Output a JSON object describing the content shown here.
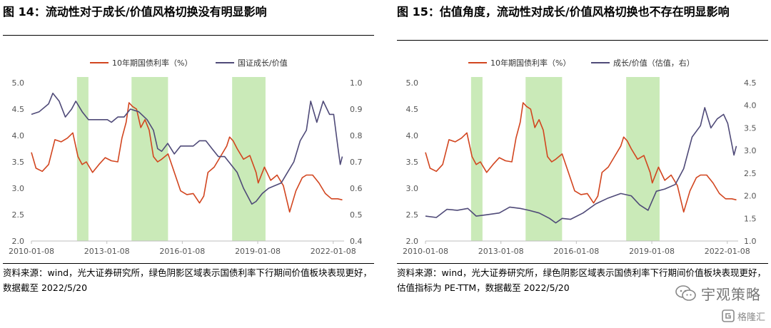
{
  "left": {
    "title": "图 14：流动性对于成长/价值风格切换没有明显影响",
    "source": "资料来源：wind，光大证券研究所，绿色阴影区域表示国债利率下行期间价值板块表现更好，数据截至 2022/5/20"
  },
  "right": {
    "title": "图 15：估值角度，流动性对成长/价值风格切换也不存在明显影响",
    "source": "资料来源：wind，光大证券研究所，绿色阴影区域表示国债利率下行期间价值板块表现更好，估值指标为 PE-TTM，数据截至 2022/5/20"
  },
  "watermark": {
    "text": "宇观策略",
    "small_text": "格隆汇"
  },
  "chart_data": [
    {
      "type": "line",
      "x_ticks": [
        "2010-01-08",
        "2013-01-08",
        "2016-01-08",
        "2019-01-08",
        "2022-01-08"
      ],
      "x_range": [
        "2010-01-08",
        "2022-06-15"
      ],
      "y_left": {
        "ticks": [
          "5.0",
          "4.5",
          "4.0",
          "3.5",
          "3.0",
          "2.5",
          "2.0"
        ],
        "range": [
          2.0,
          5.0
        ]
      },
      "y_right": {
        "ticks": [
          "1.0",
          "0.9",
          "0.8",
          "0.7",
          "0.6",
          "0.5",
          "0.4"
        ],
        "range": [
          0.4,
          1.0
        ]
      },
      "shaded_periods": [
        [
          "2011-11-01",
          "2012-04-15"
        ],
        [
          "2014-01-01",
          "2015-06-15"
        ],
        [
          "2018-01-01",
          "2019-05-01"
        ]
      ],
      "series": [
        {
          "name": "10年期国债利率（%）",
          "axis": "left",
          "color": "#d2451f",
          "points": [
            [
              "2010-01-08",
              3.68
            ],
            [
              "2010-03-15",
              3.38
            ],
            [
              "2010-06-15",
              3.32
            ],
            [
              "2010-09-15",
              3.45
            ],
            [
              "2010-12-15",
              3.92
            ],
            [
              "2011-03-15",
              3.88
            ],
            [
              "2011-06-15",
              3.95
            ],
            [
              "2011-09-01",
              4.05
            ],
            [
              "2011-11-15",
              3.6
            ],
            [
              "2012-01-15",
              3.45
            ],
            [
              "2012-03-15",
              3.5
            ],
            [
              "2012-06-15",
              3.3
            ],
            [
              "2012-09-15",
              3.45
            ],
            [
              "2012-12-15",
              3.58
            ],
            [
              "2013-03-15",
              3.52
            ],
            [
              "2013-06-15",
              3.5
            ],
            [
              "2013-08-15",
              3.95
            ],
            [
              "2013-10-15",
              4.25
            ],
            [
              "2013-11-25",
              4.62
            ],
            [
              "2014-01-15",
              4.55
            ],
            [
              "2014-03-15",
              4.5
            ],
            [
              "2014-05-15",
              4.15
            ],
            [
              "2014-07-15",
              4.3
            ],
            [
              "2014-09-15",
              4.1
            ],
            [
              "2014-11-15",
              3.6
            ],
            [
              "2015-01-15",
              3.5
            ],
            [
              "2015-03-15",
              3.55
            ],
            [
              "2015-06-15",
              3.65
            ],
            [
              "2015-09-15",
              3.3
            ],
            [
              "2015-12-15",
              2.95
            ],
            [
              "2016-03-15",
              2.88
            ],
            [
              "2016-06-15",
              2.9
            ],
            [
              "2016-09-15",
              2.72
            ],
            [
              "2016-11-15",
              2.85
            ],
            [
              "2017-01-15",
              3.3
            ],
            [
              "2017-04-15",
              3.4
            ],
            [
              "2017-07-15",
              3.6
            ],
            [
              "2017-10-15",
              3.8
            ],
            [
              "2017-11-25",
              3.97
            ],
            [
              "2018-01-15",
              3.9
            ],
            [
              "2018-03-15",
              3.75
            ],
            [
              "2018-06-15",
              3.55
            ],
            [
              "2018-09-15",
              3.62
            ],
            [
              "2018-12-15",
              3.3
            ],
            [
              "2019-01-15",
              3.1
            ],
            [
              "2019-04-15",
              3.4
            ],
            [
              "2019-07-15",
              3.15
            ],
            [
              "2019-10-15",
              3.25
            ],
            [
              "2020-01-15",
              3.05
            ],
            [
              "2020-04-15",
              2.55
            ],
            [
              "2020-07-15",
              2.95
            ],
            [
              "2020-10-15",
              3.2
            ],
            [
              "2020-12-15",
              3.25
            ],
            [
              "2021-03-15",
              3.25
            ],
            [
              "2021-06-15",
              3.1
            ],
            [
              "2021-09-15",
              2.9
            ],
            [
              "2021-12-15",
              2.8
            ],
            [
              "2022-03-15",
              2.8
            ],
            [
              "2022-05-20",
              2.78
            ]
          ]
        },
        {
          "name": "国证成长/价值",
          "axis": "right",
          "color": "#4f4a78",
          "points": [
            [
              "2010-01-08",
              0.88
            ],
            [
              "2010-05-01",
              0.89
            ],
            [
              "2010-09-15",
              0.92
            ],
            [
              "2010-11-15",
              0.96
            ],
            [
              "2011-02-15",
              0.93
            ],
            [
              "2011-05-15",
              0.87
            ],
            [
              "2011-08-15",
              0.9
            ],
            [
              "2011-10-15",
              0.93
            ],
            [
              "2012-01-15",
              0.89
            ],
            [
              "2012-04-15",
              0.86
            ],
            [
              "2012-07-15",
              0.86
            ],
            [
              "2012-10-15",
              0.86
            ],
            [
              "2013-01-15",
              0.86
            ],
            [
              "2013-03-15",
              0.85
            ],
            [
              "2013-06-15",
              0.87
            ],
            [
              "2013-09-15",
              0.87
            ],
            [
              "2013-12-15",
              0.9
            ],
            [
              "2014-04-15",
              0.89
            ],
            [
              "2014-08-15",
              0.86
            ],
            [
              "2014-11-15",
              0.82
            ],
            [
              "2015-01-15",
              0.75
            ],
            [
              "2015-03-15",
              0.74
            ],
            [
              "2015-06-10",
              0.77
            ],
            [
              "2015-09-15",
              0.73
            ],
            [
              "2015-12-15",
              0.76
            ],
            [
              "2016-03-15",
              0.76
            ],
            [
              "2016-06-15",
              0.76
            ],
            [
              "2016-09-15",
              0.78
            ],
            [
              "2016-12-15",
              0.78
            ],
            [
              "2017-03-15",
              0.75
            ],
            [
              "2017-06-15",
              0.72
            ],
            [
              "2017-09-15",
              0.72
            ],
            [
              "2017-12-15",
              0.69
            ],
            [
              "2018-03-15",
              0.66
            ],
            [
              "2018-06-15",
              0.6
            ],
            [
              "2018-10-15",
              0.54
            ],
            [
              "2018-12-15",
              0.55
            ],
            [
              "2019-03-15",
              0.58
            ],
            [
              "2019-06-15",
              0.6
            ],
            [
              "2019-09-15",
              0.61
            ],
            [
              "2019-12-15",
              0.62
            ],
            [
              "2020-03-15",
              0.66
            ],
            [
              "2020-06-15",
              0.7
            ],
            [
              "2020-09-15",
              0.78
            ],
            [
              "2020-12-15",
              0.82
            ],
            [
              "2021-02-15",
              0.93
            ],
            [
              "2021-05-15",
              0.85
            ],
            [
              "2021-08-15",
              0.93
            ],
            [
              "2021-11-15",
              0.88
            ],
            [
              "2022-01-15",
              0.88
            ],
            [
              "2022-03-15",
              0.76
            ],
            [
              "2022-04-20",
              0.69
            ],
            [
              "2022-05-20",
              0.72
            ]
          ]
        }
      ]
    },
    {
      "type": "line",
      "x_ticks": [
        "2010-01-08",
        "2013-01-08",
        "2016-01-08",
        "2019-01-08",
        "2022-01-08"
      ],
      "x_range": [
        "2010-01-08",
        "2022-06-15"
      ],
      "y_left": {
        "ticks": [
          "5.0",
          "4.5",
          "4.0",
          "3.5",
          "3.0",
          "2.5",
          "2.0"
        ],
        "range": [
          2.0,
          5.0
        ]
      },
      "y_right": {
        "ticks": [
          "4.5",
          "4.0",
          "3.5",
          "3.0",
          "2.5",
          "2.0",
          "1.5",
          "1.0"
        ],
        "range": [
          1.0,
          4.5
        ]
      },
      "shaded_periods": [
        [
          "2011-11-01",
          "2012-04-15"
        ],
        [
          "2014-01-01",
          "2015-06-15"
        ],
        [
          "2018-01-01",
          "2019-05-01"
        ]
      ],
      "series": [
        {
          "name": "10年期国债利率（%）",
          "axis": "left",
          "color": "#d2451f",
          "points": [
            [
              "2010-01-08",
              3.68
            ],
            [
              "2010-03-15",
              3.38
            ],
            [
              "2010-06-15",
              3.32
            ],
            [
              "2010-09-15",
              3.45
            ],
            [
              "2010-12-15",
              3.92
            ],
            [
              "2011-03-15",
              3.88
            ],
            [
              "2011-06-15",
              3.95
            ],
            [
              "2011-09-01",
              4.05
            ],
            [
              "2011-11-15",
              3.6
            ],
            [
              "2012-01-15",
              3.45
            ],
            [
              "2012-03-15",
              3.5
            ],
            [
              "2012-06-15",
              3.3
            ],
            [
              "2012-09-15",
              3.45
            ],
            [
              "2012-12-15",
              3.58
            ],
            [
              "2013-03-15",
              3.52
            ],
            [
              "2013-06-15",
              3.5
            ],
            [
              "2013-08-15",
              3.95
            ],
            [
              "2013-10-15",
              4.25
            ],
            [
              "2013-11-25",
              4.62
            ],
            [
              "2014-01-15",
              4.55
            ],
            [
              "2014-03-15",
              4.5
            ],
            [
              "2014-05-15",
              4.15
            ],
            [
              "2014-07-15",
              4.3
            ],
            [
              "2014-09-15",
              4.1
            ],
            [
              "2014-11-15",
              3.6
            ],
            [
              "2015-01-15",
              3.5
            ],
            [
              "2015-03-15",
              3.55
            ],
            [
              "2015-06-15",
              3.65
            ],
            [
              "2015-09-15",
              3.3
            ],
            [
              "2015-12-15",
              2.95
            ],
            [
              "2016-03-15",
              2.88
            ],
            [
              "2016-06-15",
              2.9
            ],
            [
              "2016-09-15",
              2.72
            ],
            [
              "2016-11-15",
              2.85
            ],
            [
              "2017-01-15",
              3.3
            ],
            [
              "2017-04-15",
              3.4
            ],
            [
              "2017-07-15",
              3.6
            ],
            [
              "2017-10-15",
              3.8
            ],
            [
              "2017-11-25",
              3.97
            ],
            [
              "2018-01-15",
              3.9
            ],
            [
              "2018-03-15",
              3.75
            ],
            [
              "2018-06-15",
              3.55
            ],
            [
              "2018-09-15",
              3.62
            ],
            [
              "2018-12-15",
              3.3
            ],
            [
              "2019-01-15",
              3.1
            ],
            [
              "2019-04-15",
              3.4
            ],
            [
              "2019-07-15",
              3.15
            ],
            [
              "2019-10-15",
              3.25
            ],
            [
              "2020-01-15",
              3.05
            ],
            [
              "2020-04-15",
              2.55
            ],
            [
              "2020-07-15",
              2.95
            ],
            [
              "2020-10-15",
              3.2
            ],
            [
              "2020-12-15",
              3.25
            ],
            [
              "2021-03-15",
              3.25
            ],
            [
              "2021-06-15",
              3.1
            ],
            [
              "2021-09-15",
              2.9
            ],
            [
              "2021-12-15",
              2.8
            ],
            [
              "2022-03-15",
              2.8
            ],
            [
              "2022-05-20",
              2.78
            ]
          ]
        },
        {
          "name": "成长/价值（估值，右）",
          "axis": "right",
          "color": "#4f4a78",
          "points": [
            [
              "2010-01-08",
              1.55
            ],
            [
              "2010-06-15",
              1.52
            ],
            [
              "2010-11-15",
              1.7
            ],
            [
              "2011-04-15",
              1.68
            ],
            [
              "2011-09-15",
              1.72
            ],
            [
              "2012-01-15",
              1.55
            ],
            [
              "2012-06-15",
              1.58
            ],
            [
              "2012-12-15",
              1.62
            ],
            [
              "2013-05-15",
              1.75
            ],
            [
              "2013-10-15",
              1.72
            ],
            [
              "2014-02-15",
              1.68
            ],
            [
              "2014-07-15",
              1.62
            ],
            [
              "2014-12-15",
              1.5
            ],
            [
              "2015-03-15",
              1.4
            ],
            [
              "2015-06-15",
              1.5
            ],
            [
              "2015-10-15",
              1.48
            ],
            [
              "2016-04-15",
              1.62
            ],
            [
              "2016-10-15",
              1.82
            ],
            [
              "2017-04-15",
              1.95
            ],
            [
              "2017-10-15",
              2.05
            ],
            [
              "2018-03-15",
              2.0
            ],
            [
              "2018-07-15",
              1.8
            ],
            [
              "2018-11-15",
              1.68
            ],
            [
              "2019-03-15",
              2.1
            ],
            [
              "2019-07-15",
              2.15
            ],
            [
              "2019-12-15",
              2.25
            ],
            [
              "2020-04-15",
              2.6
            ],
            [
              "2020-08-15",
              3.3
            ],
            [
              "2020-12-15",
              3.55
            ],
            [
              "2021-02-15",
              3.95
            ],
            [
              "2021-05-15",
              3.5
            ],
            [
              "2021-08-15",
              3.7
            ],
            [
              "2021-11-15",
              3.8
            ],
            [
              "2022-01-15",
              3.6
            ],
            [
              "2022-04-15",
              2.9
            ],
            [
              "2022-05-20",
              3.1
            ]
          ]
        }
      ]
    }
  ]
}
